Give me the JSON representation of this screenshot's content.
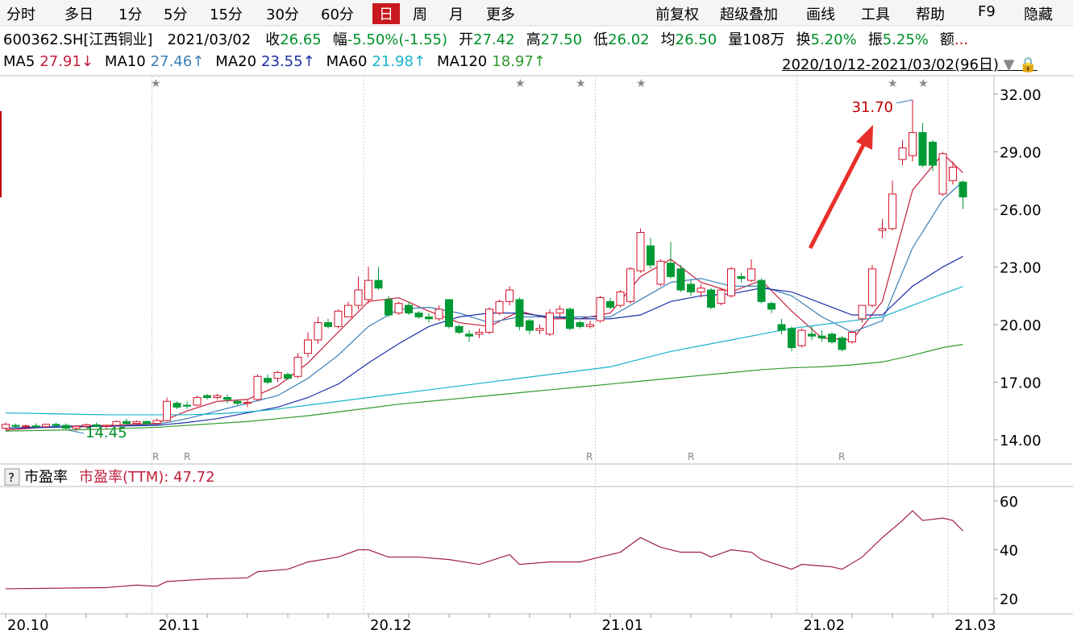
{
  "toolbar": {
    "left": [
      "分时",
      "多日",
      "1分",
      "5分",
      "15分",
      "30分",
      "60分",
      "日",
      "周",
      "月",
      "更多"
    ],
    "selected": "日",
    "right": [
      "前复权",
      "超级叠加",
      "画线",
      "工具",
      "帮助",
      "F9",
      "隐藏"
    ]
  },
  "quote": {
    "code": "600362.SH[江西铜业]",
    "date": "2021/03/02",
    "items": [
      {
        "label": "收",
        "value": "26.65",
        "color": "#00902a"
      },
      {
        "label": "幅",
        "value": "-5.50%(-1.55)",
        "color": "#00902a"
      },
      {
        "label": "开",
        "value": "27.42",
        "color": "#00902a"
      },
      {
        "label": "高",
        "value": "27.50",
        "color": "#00902a"
      },
      {
        "label": "低",
        "value": "26.02",
        "color": "#00902a"
      },
      {
        "label": "均",
        "value": "26.50",
        "color": "#00902a"
      },
      {
        "label": "量",
        "value": "108万",
        "color": "#000000"
      },
      {
        "label": "换",
        "value": "5.20%",
        "color": "#00902a"
      },
      {
        "label": "振",
        "value": "5.25%",
        "color": "#00902a"
      },
      {
        "label": "额",
        "value": "...",
        "color": "#c00000"
      }
    ]
  },
  "range": "2020/10/12-2021/03/02(96日)",
  "chart_data": [
    {
      "type": "candlestick",
      "up_color": "#d3122a",
      "down_color": "#009a35",
      "categories": [
        "20.10",
        null,
        null,
        null,
        null,
        null,
        null,
        null,
        null,
        null,
        null,
        null,
        null,
        null,
        null,
        "20.11",
        null,
        null,
        null,
        null,
        null,
        null,
        null,
        null,
        null,
        null,
        null,
        null,
        null,
        null,
        null,
        null,
        null,
        null,
        null,
        null,
        "20.12",
        null,
        null,
        null,
        null,
        null,
        null,
        null,
        null,
        null,
        null,
        null,
        null,
        null,
        null,
        null,
        null,
        null,
        null,
        null,
        null,
        null,
        null,
        "21.01",
        null,
        null,
        null,
        null,
        null,
        null,
        null,
        null,
        null,
        null,
        null,
        null,
        null,
        null,
        null,
        null,
        null,
        null,
        null,
        "21.02",
        null,
        null,
        null,
        null,
        null,
        null,
        null,
        null,
        null,
        null,
        null,
        null,
        null,
        null,
        "21.03",
        null
      ],
      "open": [
        14.6,
        14.75,
        14.7,
        14.72,
        14.68,
        14.8,
        14.75,
        14.6,
        14.7,
        14.78,
        14.7,
        14.75,
        14.95,
        14.85,
        14.95,
        14.85,
        15.0,
        15.9,
        15.8,
        15.8,
        16.3,
        16.2,
        16.2,
        16.0,
        15.9,
        16.1,
        17.2,
        17.2,
        17.4,
        17.3,
        18.5,
        19.2,
        20.1,
        19.9,
        20.4,
        21.0,
        21.3,
        22.3,
        21.3,
        20.6,
        21.0,
        20.6,
        20.4,
        20.3,
        21.3,
        19.9,
        19.5,
        19.5,
        19.6,
        20.6,
        21.2,
        21.3,
        20.2,
        19.7,
        19.5,
        20.6,
        20.8,
        20.1,
        19.9,
        20.2,
        21.2,
        21.0,
        21.2,
        22.8,
        24.1,
        22.1,
        23.2,
        22.9,
        22.1,
        21.7,
        21.8,
        21.1,
        21.5,
        22.5,
        22.3,
        22.3,
        21.1,
        20.0,
        19.8,
        18.9,
        19.5,
        19.4,
        19.5,
        19.3,
        19.1,
        20.3,
        21.0,
        24.9,
        25.0,
        28.6,
        28.8,
        30.0,
        29.5,
        26.8,
        27.5,
        27.42
      ],
      "high": [
        14.9,
        14.85,
        14.8,
        14.85,
        14.85,
        14.9,
        14.85,
        14.75,
        14.85,
        14.9,
        14.8,
        15.0,
        15.1,
        15.0,
        15.0,
        15.1,
        16.2,
        16.0,
        16.0,
        16.3,
        16.4,
        16.4,
        16.35,
        16.1,
        16.1,
        17.4,
        17.4,
        17.6,
        17.5,
        18.5,
        19.6,
        20.4,
        20.3,
        20.8,
        21.2,
        22.5,
        23.0,
        23.0,
        21.5,
        21.2,
        21.2,
        20.7,
        20.6,
        21.0,
        21.3,
        20.0,
        19.7,
        19.8,
        20.9,
        21.3,
        22.0,
        21.4,
        20.3,
        20.0,
        20.8,
        21.0,
        20.9,
        20.2,
        20.2,
        21.5,
        21.4,
        21.8,
        23.0,
        25.0,
        24.5,
        23.4,
        24.3,
        23.1,
        22.3,
        22.1,
        21.9,
        21.9,
        23.0,
        22.7,
        23.4,
        22.4,
        21.2,
        20.3,
        19.9,
        19.8,
        19.9,
        19.7,
        19.6,
        19.4,
        19.7,
        21.0,
        23.1,
        25.5,
        27.5,
        29.6,
        31.7,
        30.5,
        29.6,
        29.0,
        28.5,
        27.5
      ],
      "low": [
        14.5,
        14.6,
        14.6,
        14.6,
        14.6,
        14.65,
        14.55,
        14.45,
        14.6,
        14.65,
        14.55,
        14.7,
        14.8,
        14.75,
        14.8,
        14.75,
        14.95,
        15.6,
        15.6,
        15.75,
        16.1,
        16.1,
        15.9,
        15.8,
        15.7,
        16.0,
        16.9,
        17.0,
        17.1,
        17.2,
        18.3,
        19.0,
        19.8,
        19.8,
        20.4,
        20.8,
        21.1,
        21.8,
        20.4,
        20.5,
        20.5,
        20.3,
        20.1,
        20.2,
        19.8,
        19.5,
        19.1,
        19.3,
        19.5,
        20.5,
        21.0,
        19.7,
        19.5,
        19.5,
        19.4,
        20.4,
        19.7,
        19.8,
        19.8,
        20.1,
        20.8,
        20.9,
        21.1,
        22.7,
        22.9,
        22.0,
        22.4,
        21.7,
        21.5,
        21.4,
        20.8,
        21.0,
        21.4,
        22.2,
        22.2,
        21.1,
        20.6,
        19.5,
        18.6,
        18.8,
        19.2,
        19.1,
        19.0,
        18.6,
        19.0,
        20.1,
        20.9,
        24.5,
        24.9,
        28.3,
        28.5,
        28.2,
        28.0,
        26.7,
        27.3,
        26.02
      ],
      "close": [
        14.8,
        14.7,
        14.72,
        14.68,
        14.8,
        14.75,
        14.6,
        14.7,
        14.78,
        14.7,
        14.75,
        14.95,
        14.85,
        14.95,
        14.85,
        15.0,
        16.0,
        15.7,
        15.75,
        16.2,
        16.2,
        16.3,
        16.1,
        15.9,
        15.95,
        17.3,
        17.0,
        17.5,
        17.2,
        18.3,
        19.2,
        20.1,
        19.9,
        20.7,
        21.0,
        21.8,
        22.3,
        21.9,
        20.5,
        21.1,
        20.6,
        20.4,
        20.3,
        20.8,
        19.9,
        19.6,
        19.4,
        19.6,
        20.8,
        21.2,
        21.8,
        19.9,
        19.7,
        19.8,
        20.6,
        20.8,
        19.8,
        19.9,
        20.0,
        21.4,
        20.9,
        21.7,
        22.9,
        24.8,
        23.1,
        23.3,
        22.5,
        21.8,
        21.7,
        21.9,
        20.9,
        21.8,
        22.9,
        22.4,
        22.9,
        21.2,
        20.8,
        19.7,
        18.8,
        19.7,
        19.4,
        19.3,
        19.1,
        18.7,
        19.6,
        21.0,
        22.9,
        25.0,
        26.8,
        29.2,
        30.0,
        28.3,
        28.3,
        28.9,
        28.2,
        26.65
      ],
      "series": [
        {
          "name": "MA5",
          "color": "#c41e3a",
          "last_label": "27.91↓",
          "x": [
            0,
            5,
            10,
            15,
            18,
            21,
            24,
            27,
            30,
            33,
            36,
            39,
            42,
            45,
            48,
            51,
            54,
            57,
            60,
            63,
            66,
            69,
            72,
            75,
            78,
            81,
            84,
            87,
            90,
            93,
            95
          ],
          "values": [
            14.5,
            14.7,
            14.75,
            14.85,
            15.5,
            16.0,
            16.1,
            16.8,
            18.0,
            19.6,
            21.2,
            21.4,
            20.7,
            20.1,
            19.9,
            20.7,
            20.3,
            20.3,
            20.6,
            22.5,
            23.4,
            22.2,
            21.7,
            22.3,
            20.7,
            19.3,
            19.2,
            21.2,
            27.0,
            28.9,
            27.91
          ]
        },
        {
          "name": "MA10",
          "color": "#3a7fb8",
          "last_label": "27.46↑",
          "x": [
            0,
            5,
            10,
            15,
            18,
            21,
            24,
            27,
            30,
            33,
            36,
            39,
            42,
            45,
            48,
            51,
            54,
            57,
            60,
            63,
            66,
            69,
            72,
            75,
            78,
            81,
            84,
            87,
            90,
            93,
            95
          ],
          "values": [
            14.6,
            14.7,
            14.7,
            14.8,
            15.1,
            15.5,
            15.9,
            16.3,
            17.2,
            18.4,
            19.9,
            20.8,
            20.9,
            20.6,
            20.1,
            20.4,
            20.4,
            20.4,
            20.4,
            21.3,
            22.2,
            22.4,
            22.0,
            22.0,
            21.5,
            20.4,
            19.6,
            20.2,
            24.0,
            26.5,
            27.46
          ]
        },
        {
          "name": "MA20",
          "color": "#1c2fa8",
          "last_label": "23.55↑",
          "x": [
            0,
            5,
            10,
            15,
            18,
            21,
            24,
            27,
            30,
            33,
            36,
            39,
            42,
            45,
            48,
            51,
            54,
            57,
            60,
            63,
            66,
            69,
            72,
            75,
            78,
            81,
            84,
            87,
            90,
            93,
            95
          ],
          "values": [
            14.6,
            14.65,
            14.7,
            14.75,
            14.9,
            15.1,
            15.4,
            15.7,
            16.2,
            16.9,
            18.0,
            19.0,
            19.9,
            20.4,
            20.6,
            20.6,
            20.4,
            20.3,
            20.3,
            20.5,
            21.2,
            21.5,
            21.6,
            21.9,
            21.7,
            21.1,
            20.5,
            20.5,
            22.0,
            23.0,
            23.55
          ]
        },
        {
          "name": "MA60",
          "color": "#17b3cc",
          "last_label": "21.98↑",
          "x": [
            0,
            5,
            10,
            15,
            18,
            21,
            24,
            27,
            30,
            33,
            36,
            39,
            42,
            45,
            48,
            51,
            54,
            57,
            60,
            63,
            66,
            69,
            72,
            75,
            78,
            81,
            84,
            87,
            90,
            93,
            95
          ],
          "values": [
            15.4,
            15.35,
            15.3,
            15.3,
            15.3,
            15.35,
            15.45,
            15.6,
            15.8,
            16.0,
            16.2,
            16.4,
            16.6,
            16.8,
            17.0,
            17.2,
            17.4,
            17.6,
            17.8,
            18.2,
            18.6,
            18.9,
            19.2,
            19.5,
            19.8,
            20.0,
            20.2,
            20.4,
            21.0,
            21.6,
            21.98
          ]
        },
        {
          "name": "MA120",
          "color": "#2e9a2e",
          "last_label": "18.97↑",
          "x": [
            0,
            5,
            10,
            15,
            18,
            21,
            24,
            27,
            30,
            33,
            36,
            39,
            42,
            45,
            48,
            51,
            54,
            57,
            60,
            63,
            66,
            69,
            72,
            75,
            78,
            81,
            84,
            87,
            90,
            93,
            95
          ],
          "values": [
            14.45,
            14.5,
            14.55,
            14.65,
            14.75,
            14.85,
            14.95,
            15.1,
            15.25,
            15.45,
            15.65,
            15.85,
            16.0,
            16.15,
            16.3,
            16.45,
            16.6,
            16.75,
            16.9,
            17.05,
            17.2,
            17.35,
            17.5,
            17.65,
            17.75,
            17.8,
            17.9,
            18.05,
            18.4,
            18.8,
            18.97
          ]
        }
      ],
      "ylim": [
        12.78,
        32.92
      ],
      "yticks": [
        {
          "value": 14,
          "label": "14.00"
        },
        {
          "value": 17,
          "label": "17.00"
        },
        {
          "value": 20,
          "label": "20.00"
        },
        {
          "value": 23,
          "label": "23.00"
        },
        {
          "value": 26,
          "label": "26.00"
        },
        {
          "value": 29,
          "label": "29.00"
        },
        {
          "value": 32,
          "label": "32.00"
        }
      ],
      "annotations": [
        "31.70",
        "14.45"
      ]
    },
    {
      "type": "line",
      "title": "市盈率",
      "subtitle": "市盈率(TTM): 47.72",
      "series": [
        {
          "name": "市盈率(TTM)",
          "color": "#a0203c",
          "x": [
            0,
            10,
            13,
            15,
            16,
            20,
            24,
            25,
            28,
            30,
            33,
            35,
            36,
            38,
            41,
            44,
            47,
            50,
            51,
            54,
            57,
            59,
            61,
            63,
            65,
            67,
            69,
            70,
            72,
            74,
            75,
            78,
            79,
            82,
            83,
            85,
            87,
            89,
            90,
            91,
            93,
            94,
            95
          ],
          "values": [
            24,
            24.5,
            25.5,
            25,
            27,
            28,
            28.5,
            31,
            32,
            35,
            37,
            40,
            40,
            37,
            37,
            36,
            34,
            38,
            34,
            35,
            35,
            37,
            39,
            45,
            41,
            39,
            39,
            37,
            40,
            39,
            36,
            32,
            34,
            33,
            32,
            37,
            45,
            52,
            56,
            52,
            53,
            52,
            47.72
          ]
        }
      ],
      "ylim": [
        14.4,
        65.6
      ],
      "yticks": [
        20,
        40,
        60
      ]
    }
  ]
}
